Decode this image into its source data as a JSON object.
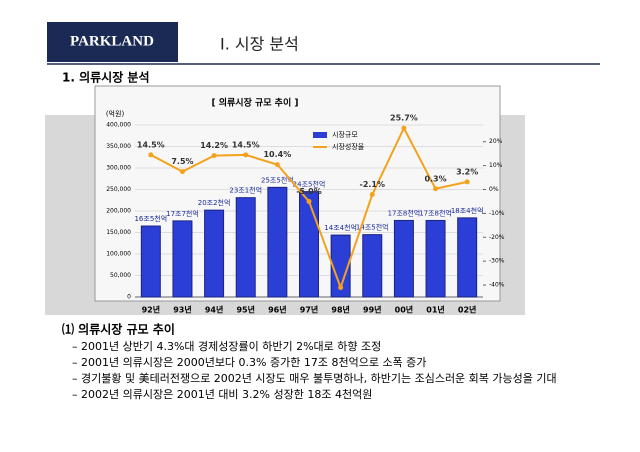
{
  "header": {
    "logo": "PARKLAND",
    "title": "Ⅰ. 시장 분석"
  },
  "section": "1. 의류시장 분석",
  "chart_data": {
    "type": "bar",
    "title": "[ 의류시장 규모 추이 ]",
    "y_label": "(억원)",
    "categories": [
      "92년",
      "93년",
      "94년",
      "95년",
      "96년",
      "97년",
      "98년",
      "99년",
      "00년",
      "01년",
      "02년"
    ],
    "series": [
      {
        "name": "시장규모",
        "color": "#2b3fd6",
        "values": [
          165000,
          177000,
          202000,
          231000,
          255000,
          245000,
          144000,
          145000,
          178000,
          178000,
          184000
        ],
        "value_labels": [
          "16조5천억",
          "17조7천억",
          "20조2천억",
          "23조1천억",
          "25조5천억",
          "24조5천억",
          "14조4천억",
          "14조5천억",
          "17조8천억",
          "17조8천억",
          "18조4천억"
        ]
      },
      {
        "name": "시장성장율",
        "color": "#f4a21c",
        "axis": "y2",
        "values": [
          14.5,
          7.5,
          14.2,
          14.5,
          10.4,
          -5.0,
          -41.0,
          -2.1,
          25.7,
          0.3,
          3.2
        ],
        "value_labels": [
          "14.5%",
          "7.5%",
          "14.2%",
          "14.5%",
          "10.4%",
          "-5.0%",
          null,
          "-2.1%",
          "25.7%",
          "0.3%",
          "3.2%"
        ]
      }
    ],
    "ylim": [
      0,
      400000
    ],
    "yticks": [
      0,
      {
        "value": 50000,
        "label": "50,000"
      },
      {
        "value": 100000,
        "label": "100,000"
      },
      {
        "value": 150000,
        "label": "150,000"
      },
      {
        "value": 200000,
        "label": "200,000"
      },
      {
        "value": 250000,
        "label": "250,000"
      },
      {
        "value": 300000,
        "label": "300,000"
      },
      {
        "value": 350000,
        "label": "350,000"
      },
      {
        "value": 400000,
        "label": "400,000"
      }
    ],
    "y2lim": [
      -45,
      27
    ],
    "y2ticks": [
      {
        "value": 20,
        "label": "20%"
      },
      {
        "value": 10,
        "label": "10%"
      },
      {
        "value": 0,
        "label": "0%"
      },
      {
        "value": -10,
        "label": "-10%"
      },
      {
        "value": -20,
        "label": "-20%"
      },
      {
        "value": -30,
        "label": "-30%"
      },
      {
        "value": -40,
        "label": "-40%"
      }
    ],
    "grid": true
  },
  "notes": {
    "heading": "⑴ 의류시장 규모 추이",
    "items": [
      "– 2001년 상반기 4.3%대 경제성장률이 하반기 2%대로 하향 조정",
      "– 2001년 의류시장은 2000년보다 0.3% 증가한 17조 8천억으로 소폭 증가",
      "– 경기불황 및 美테러전쟁으로 2002년 시장도 매우 불투명하나, 하반기는 조심스러운 회복 가능성을 기대",
      "– 2002년 의류시장은 2001년 대비 3.2% 성장한 18조 4천억원"
    ]
  }
}
